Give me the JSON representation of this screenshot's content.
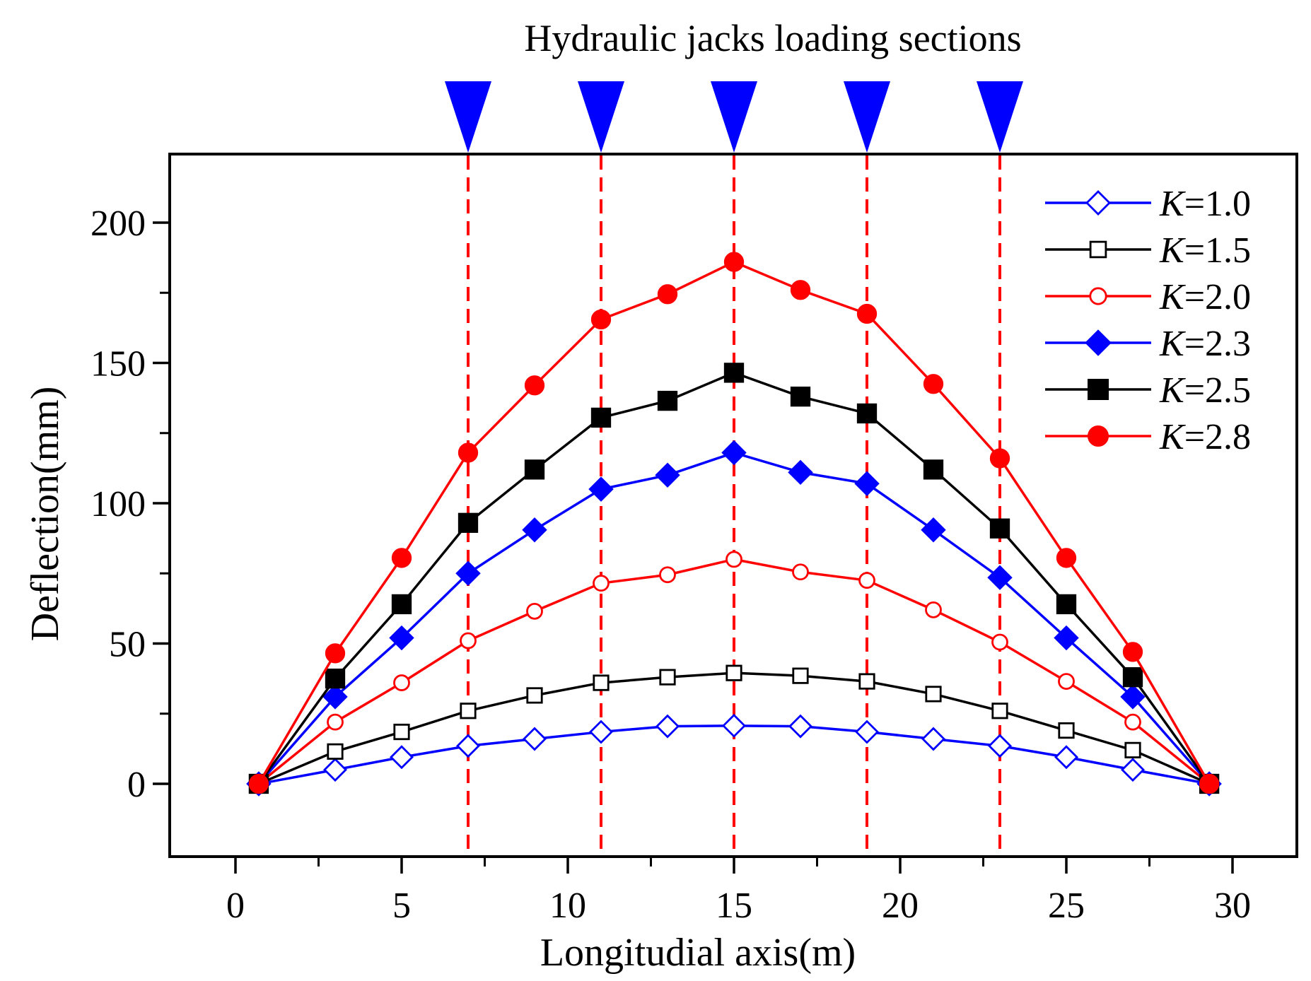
{
  "chart_data": {
    "type": "line",
    "top_annotation": "Hydraulic jacks loading sections",
    "xlabel": "Longitudial axis(m)",
    "ylabel": "Deflection(mm)",
    "xlim": [
      -2,
      32
    ],
    "ylim": [
      -25,
      225
    ],
    "xticks": [
      0,
      5,
      10,
      15,
      20,
      25,
      30
    ],
    "xtick_labels": [
      "0",
      "5",
      "10",
      "15",
      "20",
      "25",
      "30"
    ],
    "yticks": [
      0,
      50,
      100,
      150,
      200
    ],
    "ytick_labels": [
      "0",
      "50",
      "100",
      "150",
      "200"
    ],
    "jack_positions": [
      7,
      11,
      15,
      19,
      23
    ],
    "jack_color": "#0000ff",
    "guide_line_color": "#ff0000",
    "legend_position": "top-right",
    "legend_prefix": "K",
    "x": [
      0.7,
      3,
      5,
      7,
      9,
      11,
      13,
      15,
      17,
      19,
      21,
      23,
      25,
      27,
      29.3
    ],
    "series": [
      {
        "name": "K=1.0",
        "value_label": "=1.0",
        "color": "#0000ff",
        "marker": "diamond",
        "filled": false,
        "values": [
          0,
          5,
          9.5,
          13.5,
          16,
          18.5,
          20.5,
          20.7,
          20.5,
          18.5,
          16,
          13.5,
          9.5,
          5,
          0
        ]
      },
      {
        "name": "K=1.5",
        "value_label": "=1.5",
        "color": "#000000",
        "marker": "square",
        "filled": false,
        "values": [
          0,
          11.5,
          18.5,
          26,
          31.5,
          36,
          38,
          39.5,
          38.5,
          36.5,
          32,
          26,
          19,
          12,
          0
        ]
      },
      {
        "name": "K=2.0",
        "value_label": "=2.0",
        "color": "#ff0000",
        "marker": "circle",
        "filled": false,
        "values": [
          0,
          22,
          36,
          51,
          61.5,
          71.5,
          74.5,
          80,
          75.5,
          72.5,
          62,
          50.5,
          36.5,
          22,
          0
        ]
      },
      {
        "name": "K=2.3",
        "value_label": "=2.3",
        "color": "#0000ff",
        "marker": "diamond",
        "filled": true,
        "values": [
          0,
          31,
          52,
          75,
          90.5,
          105,
          110,
          118,
          111,
          107,
          90.5,
          73.5,
          52,
          31,
          0
        ]
      },
      {
        "name": "K=2.5",
        "value_label": "=2.5",
        "color": "#000000",
        "marker": "square",
        "filled": true,
        "values": [
          0,
          37.5,
          64,
          93,
          112,
          130.5,
          136.5,
          146.5,
          138,
          132,
          112,
          91,
          64,
          38,
          0
        ]
      },
      {
        "name": "K=2.8",
        "value_label": "=2.8",
        "color": "#ff0000",
        "marker": "circle",
        "filled": true,
        "values": [
          0,
          46.5,
          80.5,
          118,
          142,
          165.5,
          174.5,
          186,
          176,
          167.5,
          142.5,
          116,
          80.5,
          47,
          0
        ]
      }
    ]
  }
}
